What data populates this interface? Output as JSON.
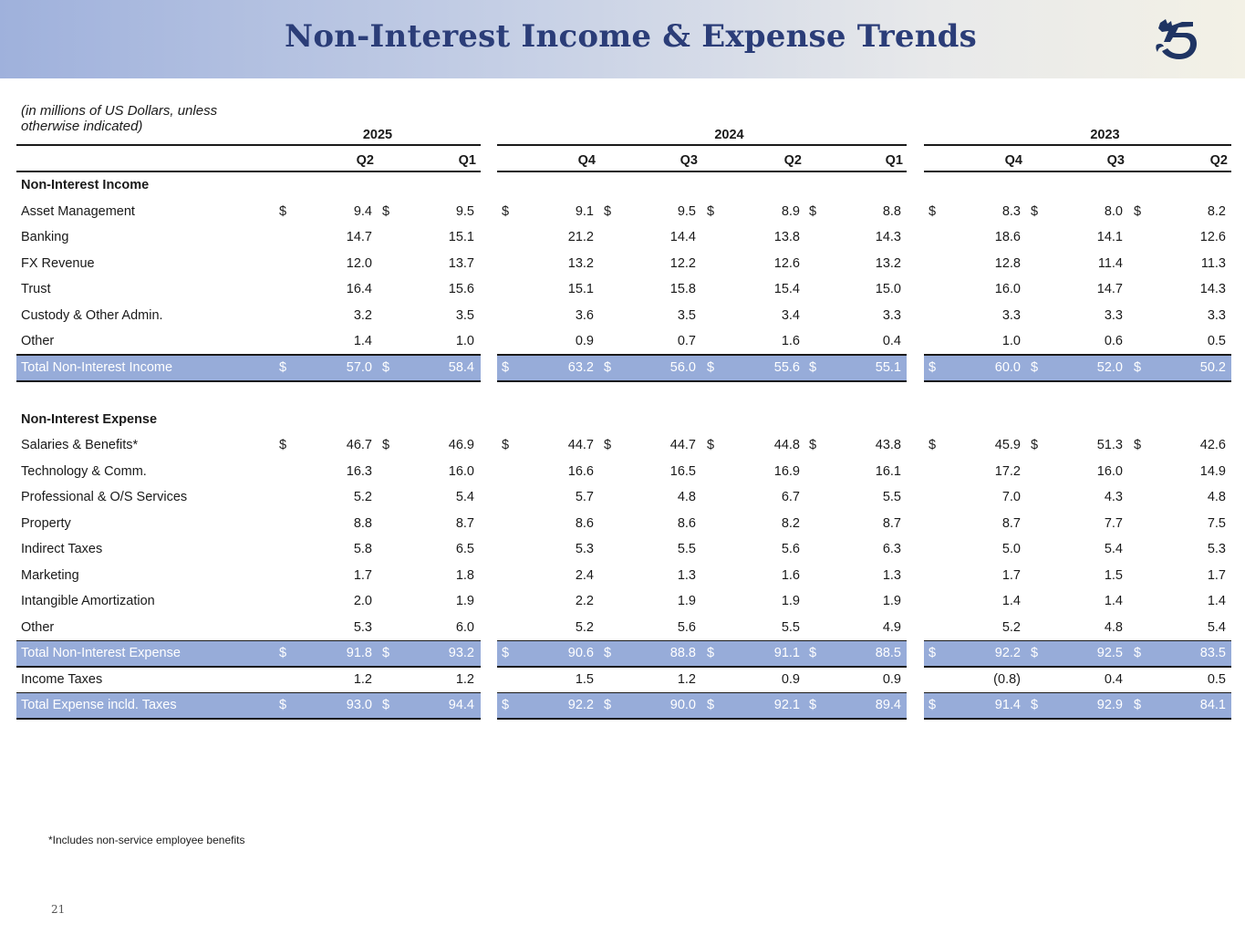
{
  "header": {
    "title": "Non-Interest Income & Expense Trends",
    "logo_icon": "lion-logo-icon",
    "brand_color": "#2b3d78"
  },
  "table": {
    "units_note": "(in millions of US Dollars, unless otherwise indicated)",
    "years": [
      "2025",
      "2024",
      "2023"
    ],
    "quarters": [
      "Q2",
      "Q1",
      "Q4",
      "Q3",
      "Q2",
      "Q1",
      "Q4",
      "Q3",
      "Q2"
    ],
    "highlight_color": "#97acd9",
    "rows": [
      {
        "type": "section",
        "label": "Non-Interest Income"
      },
      {
        "type": "data",
        "label": "Asset Management",
        "currency": true,
        "values": [
          "9.4",
          "9.5",
          "9.1",
          "9.5",
          "8.9",
          "8.8",
          "8.3",
          "8.0",
          "8.2"
        ]
      },
      {
        "type": "data",
        "label": "Banking",
        "values": [
          "14.7",
          "15.1",
          "21.2",
          "14.4",
          "13.8",
          "14.3",
          "18.6",
          "14.1",
          "12.6"
        ]
      },
      {
        "type": "data",
        "label": "FX Revenue",
        "values": [
          "12.0",
          "13.7",
          "13.2",
          "12.2",
          "12.6",
          "13.2",
          "12.8",
          "11.4",
          "11.3"
        ]
      },
      {
        "type": "data",
        "label": "Trust",
        "values": [
          "16.4",
          "15.6",
          "15.1",
          "15.8",
          "15.4",
          "15.0",
          "16.0",
          "14.7",
          "14.3"
        ]
      },
      {
        "type": "data",
        "label": "Custody & Other Admin.",
        "values": [
          "3.2",
          "3.5",
          "3.6",
          "3.5",
          "3.4",
          "3.3",
          "3.3",
          "3.3",
          "3.3"
        ]
      },
      {
        "type": "data",
        "label": "Other",
        "values": [
          "1.4",
          "1.0",
          "0.9",
          "0.7",
          "1.6",
          "0.4",
          "1.0",
          "0.6",
          "0.5"
        ],
        "rule_below": true
      },
      {
        "type": "total",
        "label": "Total Non-Interest Income",
        "currency": true,
        "values": [
          "57.0",
          "58.4",
          "63.2",
          "56.0",
          "55.6",
          "55.1",
          "60.0",
          "52.0",
          "50.2"
        ]
      },
      {
        "type": "spacer"
      },
      {
        "type": "section",
        "label": "Non-Interest Expense"
      },
      {
        "type": "data",
        "label": "Salaries & Benefits*",
        "currency": true,
        "values": [
          "46.7",
          "46.9",
          "44.7",
          "44.7",
          "44.8",
          "43.8",
          "45.9",
          "51.3",
          "42.6"
        ]
      },
      {
        "type": "data",
        "label": "Technology & Comm.",
        "values": [
          "16.3",
          "16.0",
          "16.6",
          "16.5",
          "16.9",
          "16.1",
          "17.2",
          "16.0",
          "14.9"
        ]
      },
      {
        "type": "data",
        "label": "Professional & O/S Services",
        "values": [
          "5.2",
          "5.4",
          "5.7",
          "4.8",
          "6.7",
          "5.5",
          "7.0",
          "4.3",
          "4.8"
        ]
      },
      {
        "type": "data",
        "label": "Property",
        "values": [
          "8.8",
          "8.7",
          "8.6",
          "8.6",
          "8.2",
          "8.7",
          "8.7",
          "7.7",
          "7.5"
        ]
      },
      {
        "type": "data",
        "label": "Indirect Taxes",
        "values": [
          "5.8",
          "6.5",
          "5.3",
          "5.5",
          "5.6",
          "6.3",
          "5.0",
          "5.4",
          "5.3"
        ]
      },
      {
        "type": "data",
        "label": "Marketing",
        "values": [
          "1.7",
          "1.8",
          "2.4",
          "1.3",
          "1.6",
          "1.3",
          "1.7",
          "1.5",
          "1.7"
        ]
      },
      {
        "type": "data",
        "label": "Intangible Amortization",
        "values": [
          "2.0",
          "1.9",
          "2.2",
          "1.9",
          "1.9",
          "1.9",
          "1.4",
          "1.4",
          "1.4"
        ]
      },
      {
        "type": "data",
        "label": "Other",
        "values": [
          "5.3",
          "6.0",
          "5.2",
          "5.6",
          "5.5",
          "4.9",
          "5.2",
          "4.8",
          "5.4"
        ],
        "rule_below": true
      },
      {
        "type": "total",
        "label": "Total Non-Interest Expense",
        "currency": true,
        "values": [
          "91.8",
          "93.2",
          "90.6",
          "88.8",
          "91.1",
          "88.5",
          "92.2",
          "92.5",
          "83.5"
        ]
      },
      {
        "type": "data",
        "label": "Income Taxes",
        "values": [
          "1.2",
          "1.2",
          "1.5",
          "1.2",
          "0.9",
          "0.9",
          "(0.8)",
          "0.4",
          "0.5"
        ],
        "rule_below": true
      },
      {
        "type": "total",
        "label": "Total Expense incld. Taxes",
        "currency": true,
        "values": [
          "93.0",
          "94.4",
          "92.2",
          "90.0",
          "92.1",
          "89.4",
          "91.4",
          "92.9",
          "84.1"
        ]
      }
    ],
    "currency_symbol": "$"
  },
  "footnote": "*Includes non-service employee benefits",
  "page_number": "21"
}
